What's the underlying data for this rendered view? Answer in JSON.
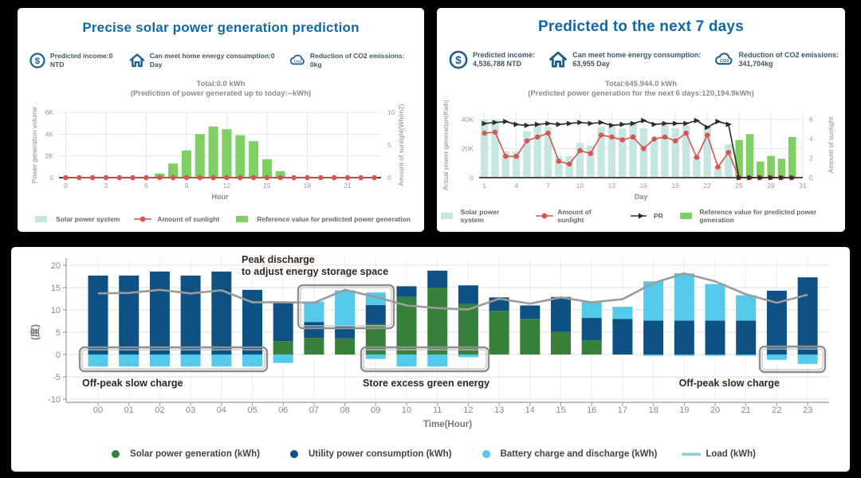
{
  "colors": {
    "page_bg": "#000000",
    "panel_bg": "#ffffff",
    "title_blue": "#1268a5",
    "stat_icon_blue": "#1b5f93",
    "stat_text": "#3c5766",
    "chart_title_gray": "#8a8a8a",
    "axis_text": "#999999",
    "grid": "#e5e5e5",
    "axis_line_dark": "#4d4d4d",
    "axis_line_gray": "#aaaaaa",
    "teal_bar": "#c6e6e3",
    "light_green": "#7ed063",
    "red": "#d9534f",
    "pr_black": "#2b2b2b",
    "navy": "#0e5285",
    "cyan": "#55c9ea",
    "forest_green": "#37803a",
    "load_gray": "#9b9b9b",
    "legend_load": "#7fcbe0",
    "annotation_text": "#33261a",
    "box_border": "#8f8f8f",
    "box_border_inner": "#c2c2c2"
  },
  "panel_hourly": {
    "title": "Precise solar power generation prediction",
    "stats": [
      {
        "icon": "dollar-icon",
        "lines": [
          "Predicted income:0 NTD"
        ]
      },
      {
        "icon": "home-icon",
        "lines": [
          "Can meet home energy consumption:0 Day"
        ]
      },
      {
        "icon": "co2-cloud-icon",
        "lines": [
          "Reduction of CO2 emissions: 0kg"
        ]
      }
    ],
    "chart_title": "Total:0.0 kWh",
    "chart_subtitle": "(Prediction of power generated up to today:--kWh)"
  },
  "panel_daily": {
    "title": "Predicted to the next 7 days",
    "stats": [
      {
        "icon": "dollar-icon",
        "lines": [
          "Predicted income:",
          "4,536,788 NTD"
        ]
      },
      {
        "icon": "home-icon",
        "lines": [
          "Can meet home energy consumption:",
          "63,955 Day"
        ]
      },
      {
        "icon": "co2-cloud-icon",
        "lines": [
          "Reduction of CO2 emissions:",
          "341,704kg"
        ]
      }
    ],
    "chart_title": "Total:645.944.0 kWh",
    "chart_subtitle": "(Predicted power generation for the next 6 days:120,194.9kWh)"
  },
  "chart_data": [
    {
      "id": "hourly-prediction",
      "type": "bar",
      "title": "Total:0.0 kWh",
      "xlabel": "Hour",
      "x": [
        0,
        1,
        2,
        3,
        4,
        5,
        6,
        7,
        8,
        9,
        10,
        11,
        12,
        13,
        14,
        15,
        16,
        17,
        18,
        19,
        20,
        21,
        22,
        23
      ],
      "xticks": [
        0,
        3,
        6,
        9,
        12,
        15,
        18,
        21
      ],
      "left_axis": {
        "label": "Power generation volume",
        "tick_values": [
          0,
          2000,
          4000,
          6000
        ],
        "tick_labels": [
          "0",
          "2K",
          "4K",
          "6K"
        ],
        "range": [
          0,
          6000
        ]
      },
      "right_axis": {
        "label": "Amount of sunlight(Wh/m2)",
        "tick_values": [
          0,
          5,
          10
        ],
        "tick_labels": [
          "0",
          "5",
          "10"
        ],
        "range": [
          0,
          10
        ]
      },
      "series": [
        {
          "name": "Solar power system",
          "kind": "bar",
          "color": "teal_bar",
          "axis": "left",
          "values": [
            0,
            0,
            0,
            0,
            0,
            0,
            0,
            0,
            0,
            0,
            0,
            0,
            0,
            0,
            0,
            0,
            0,
            0,
            0,
            0,
            0,
            0,
            0,
            0
          ]
        },
        {
          "name": "Reference value for predicted power generation",
          "kind": "bar",
          "color": "light_green",
          "axis": "left",
          "values": [
            0,
            0,
            0,
            0,
            0,
            0,
            0,
            370,
            1300,
            2500,
            4000,
            4700,
            4450,
            3900,
            3350,
            1700,
            600,
            0,
            0,
            0,
            0,
            0,
            0,
            0
          ]
        },
        {
          "name": "Amount of sunlight",
          "kind": "line",
          "marker": "dot",
          "color": "red",
          "axis": "right",
          "values": [
            0,
            0,
            0,
            0,
            0,
            0,
            0,
            0,
            0,
            0,
            0,
            0,
            0,
            0,
            0,
            0,
            0,
            0,
            0,
            0,
            0,
            0,
            0,
            0
          ]
        }
      ],
      "legend": [
        {
          "label": "Solar power system",
          "swatch": "rect",
          "color": "teal_bar"
        },
        {
          "label": "Amount of sunlight",
          "swatch": "dot-line",
          "color": "red"
        },
        {
          "label": "Reference value for predicted power generation",
          "swatch": "rect",
          "color": "light_green"
        }
      ]
    },
    {
      "id": "daily-prediction",
      "type": "bar+line",
      "title": "Total:645.944.0 kWh",
      "xlabel": "Day",
      "x": [
        1,
        2,
        3,
        4,
        5,
        6,
        7,
        8,
        9,
        10,
        11,
        12,
        13,
        14,
        15,
        16,
        17,
        18,
        19,
        20,
        21,
        22,
        23,
        24,
        25,
        26,
        27,
        28,
        29,
        30
      ],
      "xticks": [
        1,
        4,
        7,
        10,
        13,
        16,
        19,
        22,
        25,
        28,
        31
      ],
      "left_axis": {
        "label": "Actual power generation(Kwh)",
        "tick_values": [
          0,
          20000,
          40000
        ],
        "tick_labels": [
          "0",
          "20K",
          "40K"
        ],
        "range": [
          0,
          45000
        ]
      },
      "right_axis": {
        "label": "Amount of sunlight",
        "tick_values": [
          0,
          2,
          4,
          6
        ],
        "tick_labels": [
          "0",
          "2",
          "4",
          "6"
        ],
        "range": [
          0,
          6.75
        ]
      },
      "series": [
        {
          "name": "Solar power system",
          "kind": "bar",
          "color": "teal_bar",
          "axis": "left",
          "values": [
            40000,
            40000,
            18000,
            18000,
            32000,
            37000,
            35000,
            15000,
            15000,
            24000,
            22000,
            35000,
            35000,
            34000,
            37000,
            34000,
            26000,
            38000,
            34000,
            36000,
            15000,
            35000,
            8000,
            23000,
            0,
            0,
            0,
            0,
            0,
            0
          ]
        },
        {
          "name": "Reference value for predicted power generation",
          "kind": "bar",
          "color": "light_green",
          "axis": "left",
          "values": [
            0,
            0,
            0,
            0,
            0,
            0,
            0,
            0,
            0,
            0,
            0,
            0,
            0,
            0,
            0,
            0,
            0,
            0,
            0,
            0,
            0,
            0,
            0,
            0,
            26000,
            30000,
            11000,
            15000,
            13000,
            28000
          ]
        },
        {
          "name": "Amount of sunlight",
          "kind": "line",
          "marker": "dot",
          "color": "red",
          "axis": "right",
          "values": [
            4.6,
            4.7,
            2.2,
            2.2,
            3.8,
            4.2,
            4.6,
            1.7,
            1.4,
            2.8,
            2.5,
            4.4,
            4.2,
            3.9,
            4.2,
            3.0,
            4.0,
            4.2,
            3.8,
            4.6,
            2.1,
            4.4,
            1.1,
            2.6,
            0,
            0,
            0,
            0,
            0,
            0
          ]
        },
        {
          "name": "PR",
          "kind": "line",
          "marker": "triangle",
          "color": "pr_black",
          "axis": "right",
          "values": [
            5.6,
            5.7,
            5.8,
            5.5,
            5.4,
            5.5,
            5.6,
            5.5,
            5.6,
            5.7,
            5.6,
            5.7,
            5.4,
            5.5,
            5.6,
            5.9,
            5.5,
            5.6,
            5.6,
            5.6,
            5.9,
            5.2,
            5.8,
            5.5,
            0,
            0,
            0,
            0,
            0,
            0
          ]
        }
      ],
      "legend": [
        {
          "label": "Solar power system",
          "swatch": "rect",
          "color": "teal_bar"
        },
        {
          "label": "Amount of sunlight",
          "swatch": "dot-line",
          "color": "red"
        },
        {
          "label": "PR",
          "swatch": "arrow-line",
          "color": "pr_black"
        },
        {
          "label": "Reference value for predicted power generation",
          "swatch": "rect",
          "color": "light_green"
        }
      ]
    },
    {
      "id": "energy-storage-schedule",
      "type": "stacked-bar+line",
      "ylabel": "(度)",
      "yticks": [
        -10,
        -5,
        0,
        5,
        10,
        15,
        20
      ],
      "ylim": [
        -10,
        20
      ],
      "xlabel": "Time(Hour)",
      "hours": [
        "00",
        "01",
        "02",
        "03",
        "04",
        "05",
        "06",
        "07",
        "08",
        "09",
        "10",
        "11",
        "12",
        "13",
        "14",
        "15",
        "16",
        "17",
        "18",
        "19",
        "20",
        "21",
        "22",
        "23"
      ],
      "series": {
        "solar_power_generation": {
          "label": "Solar power generation (kWh)",
          "color": "forest_green",
          "values": [
            0,
            0,
            0,
            0,
            0,
            0,
            3.0,
            3.7,
            3.6,
            6.8,
            12.9,
            15.0,
            11.3,
            9.8,
            8.0,
            5.1,
            3.2,
            0,
            0,
            0,
            0,
            0,
            0,
            0
          ]
        },
        "utility_power_consumption": {
          "label": "Utility power consumption (kWh)",
          "color": "navy",
          "values": [
            17.7,
            17.7,
            18.6,
            17.7,
            18.6,
            14.5,
            8.7,
            3.6,
            2.7,
            4.3,
            2.4,
            3.8,
            4.2,
            3.0,
            3.0,
            7.8,
            5.0,
            8.0,
            7.6,
            7.6,
            7.6,
            7.6,
            14.3,
            17.3
          ]
        },
        "battery_discharge": {
          "label": "Battery charge and discharge (kWh)",
          "color": "cyan",
          "values": [
            0,
            0,
            0,
            0,
            0,
            0,
            0,
            4.6,
            8.1,
            2.8,
            0,
            0,
            0,
            0,
            0,
            0,
            3.7,
            2.7,
            8.8,
            10.6,
            8.2,
            5.7,
            0,
            0
          ]
        },
        "battery_charge": {
          "label": "Battery charge and discharge (kWh)",
          "color": "cyan",
          "values": [
            -2.7,
            -2.7,
            -2.7,
            -2.7,
            -2.7,
            -2.7,
            -1.9,
            0,
            0,
            -1.0,
            -2.7,
            -2.7,
            -0.6,
            0,
            0,
            0,
            0,
            0,
            -0.3,
            -0.3,
            -0.3,
            -0.3,
            -1.2,
            -2.1
          ]
        },
        "load": {
          "label": "Load (kWh)",
          "color": "load_gray",
          "values": [
            13.7,
            13.8,
            14.5,
            13.7,
            14.4,
            11.7,
            11.7,
            11.6,
            14.5,
            12.9,
            11.0,
            10.4,
            10.1,
            12.5,
            11.4,
            12.8,
            11.7,
            12.4,
            16.0,
            18.2,
            16.4,
            13.5,
            11.6,
            13.4
          ]
        }
      },
      "annotations": [
        {
          "name": "peak-discharge-note",
          "lines": [
            "Peak discharge",
            "to adjust energy storage space"
          ]
        },
        {
          "name": "offpeak-left-note",
          "lines": [
            "Off-peak slow charge"
          ]
        },
        {
          "name": "store-note",
          "lines": [
            "Store excess green energy"
          ]
        },
        {
          "name": "offpeak-right-note",
          "lines": [
            "Off-peak slow charge"
          ]
        }
      ],
      "legend": [
        {
          "label": "Solar power generation (kWh)",
          "swatch": "dot",
          "color": "forest_green"
        },
        {
          "label": "Utility power consumption (kWh)",
          "swatch": "dot",
          "color": "navy"
        },
        {
          "label": "Battery charge and discharge (kWh)",
          "swatch": "dot",
          "color": "cyan"
        },
        {
          "label": "Load (kWh)",
          "swatch": "line",
          "color": "legend_load"
        }
      ]
    }
  ]
}
